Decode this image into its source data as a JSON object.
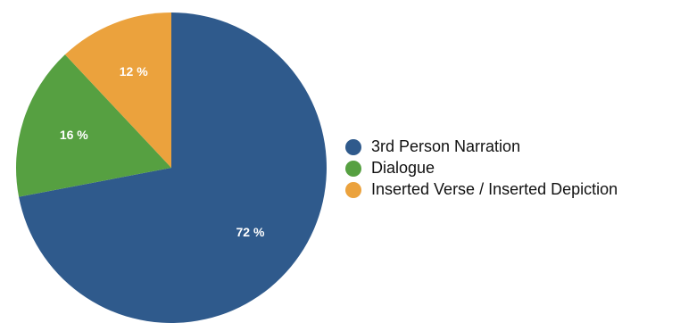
{
  "chart_data": {
    "type": "pie",
    "slices": [
      {
        "label": "3rd Person Narration",
        "value": 72,
        "color": "#2f5a8c",
        "display": "72 %"
      },
      {
        "label": "Dialogue",
        "value": 16,
        "color": "#56a041",
        "display": "16 %"
      },
      {
        "label": "Inserted Verse / Inserted Depiction",
        "value": 12,
        "color": "#eba23d",
        "display": "12 %"
      }
    ],
    "start": "12 o'clock",
    "direction": "clockwise",
    "legend": {
      "placement": "right"
    }
  }
}
